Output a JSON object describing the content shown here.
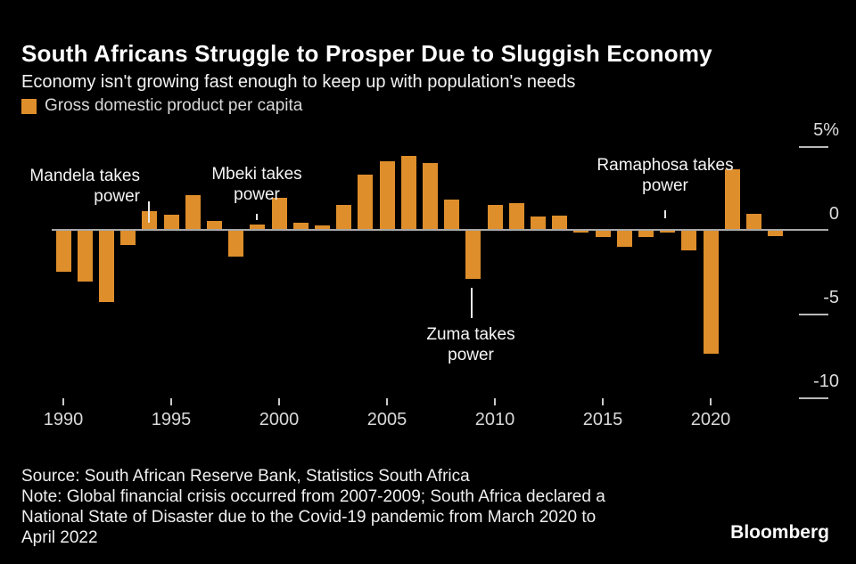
{
  "header": {
    "title": "South Africans Struggle to Prosper Due to Sluggish Economy",
    "subtitle": "Economy isn't growing fast enough to keep up with population's needs"
  },
  "legend": {
    "label": "Gross domestic product per capita",
    "swatch_color": "#de8e2b"
  },
  "chart_data": {
    "type": "bar",
    "title": "South Africans Struggle to Prosper Due to Sluggish Economy",
    "subtitle": "Economy isn't growing fast enough to keep up with population's needs",
    "series_name": "Gross domestic product per capita",
    "unit": "%",
    "xlabel": "",
    "ylabel": "",
    "grid": "off",
    "legend_position": "top-left",
    "bar_color": "#de8e2b",
    "x": [
      1990,
      1991,
      1992,
      1993,
      1994,
      1995,
      1996,
      1997,
      1998,
      1999,
      2000,
      2001,
      2002,
      2003,
      2004,
      2005,
      2006,
      2007,
      2008,
      2009,
      2010,
      2011,
      2012,
      2013,
      2014,
      2015,
      2016,
      2017,
      2018,
      2019,
      2020,
      2021,
      2022,
      2023
    ],
    "values": [
      -2.5,
      -3.1,
      -4.3,
      -0.9,
      1.1,
      0.9,
      2.1,
      0.55,
      -1.6,
      0.3,
      1.9,
      0.45,
      0.25,
      1.5,
      3.3,
      4.1,
      4.4,
      4.0,
      1.8,
      -2.9,
      1.5,
      1.6,
      0.8,
      0.85,
      -0.15,
      -0.4,
      -1.0,
      -0.4,
      -0.15,
      -1.2,
      -7.4,
      3.6,
      0.95,
      -0.35
    ],
    "y_axis": {
      "range": [
        -10.5,
        5.5
      ],
      "ticks": [
        5,
        0,
        -5,
        -10
      ],
      "tick_labels": [
        "5%",
        "0",
        "-5",
        "-10"
      ]
    },
    "x_axis": {
      "ticks": [
        1990,
        1995,
        2000,
        2005,
        2010,
        2015,
        2020
      ]
    },
    "annotations": [
      {
        "id": "mandela",
        "label_lines": [
          "Mandela takes",
          "power"
        ],
        "year": 1994
      },
      {
        "id": "mbeki",
        "label_lines": [
          "Mbeki takes",
          "power"
        ],
        "year": 1999
      },
      {
        "id": "zuma",
        "label_lines": [
          "Zuma takes",
          "power"
        ],
        "year": 2009
      },
      {
        "id": "ramaphosa",
        "label_lines": [
          "Ramaphosa takes",
          "power"
        ],
        "year": 2018
      }
    ]
  },
  "footer": {
    "source": "Source: South African Reserve Bank, Statistics South Africa",
    "note_lines": [
      "Note: Global financial crisis occurred from 2007-2009; South Africa declared a",
      "National State of Disaster due to the Covid-19 pandemic from March 2020 to",
      "April 2022"
    ],
    "brand": "Bloomberg"
  }
}
